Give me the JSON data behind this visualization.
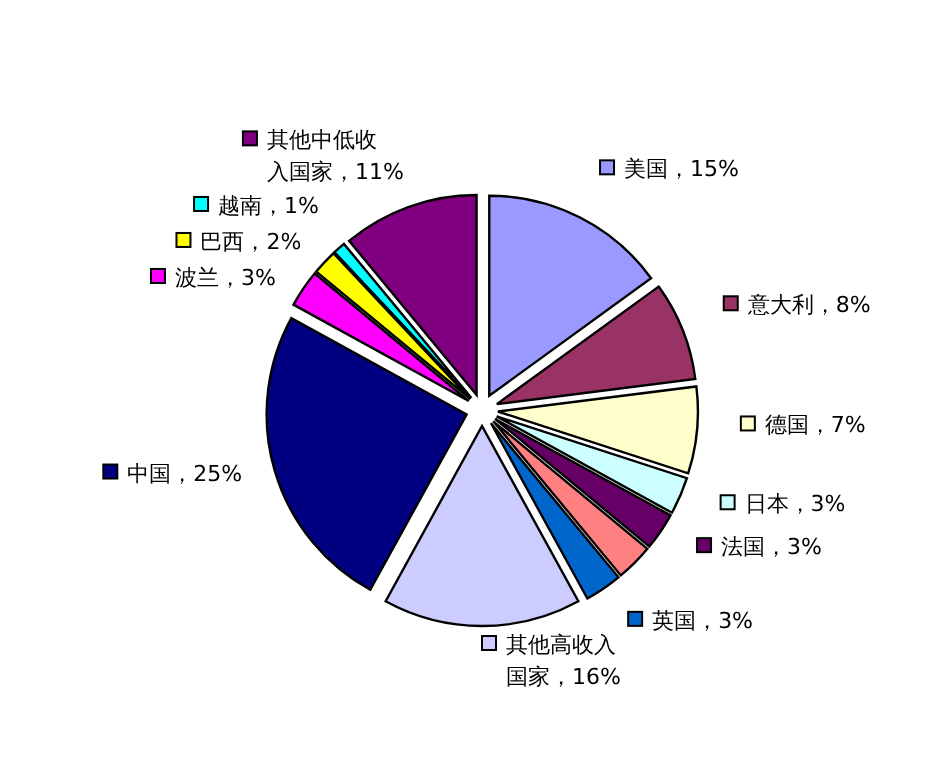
{
  "chart_data": {
    "type": "pie",
    "categories": [
      "美国",
      "意大利",
      "德国",
      "日本",
      "法国",
      null,
      "英国",
      "其他高收入国家",
      "中国",
      "波兰",
      "巴西",
      "越南",
      "其他中低收入国家"
    ],
    "values": [
      15,
      8,
      7,
      3,
      3,
      3,
      3,
      16,
      25,
      3,
      2,
      1,
      11
    ],
    "value_labels": [
      "15%",
      "8%",
      "7%",
      "3%",
      "3%",
      null,
      "3%",
      "16%",
      "25%",
      "3%",
      "2%",
      "1%",
      "11%"
    ],
    "legend": "right",
    "colors": [
      "#9999ff",
      "#993366",
      "#ffffcc",
      "#ccffff",
      "#660066",
      "#ff8080",
      "#0066cc",
      "#ccccff",
      "#000080",
      "#ff00ff",
      "#ffff00",
      "#00ffff",
      "#800080"
    ]
  }
}
